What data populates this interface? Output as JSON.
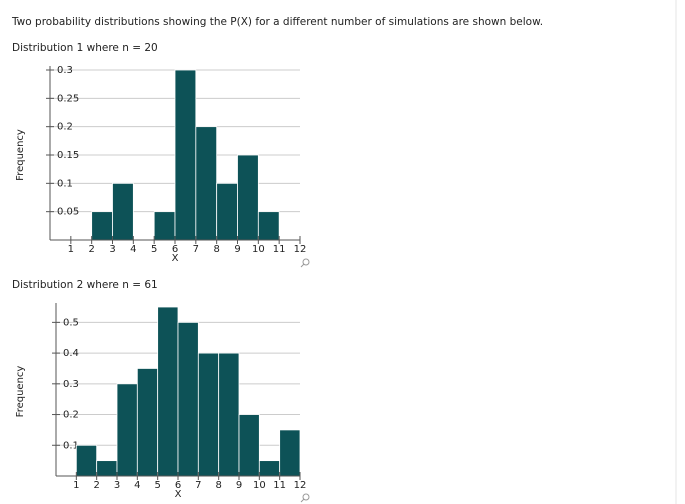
{
  "intro": "Two probability distributions showing the P(X) for a different number of simulations are shown below.",
  "chart_data": [
    {
      "type": "histogram",
      "title": "Distribution 1 where n = 20",
      "x_label": "X",
      "y_label": "Frequency",
      "bins": [
        1,
        2,
        3,
        4,
        5,
        6,
        7,
        8,
        9,
        10,
        11,
        12
      ],
      "values": [
        0,
        0.05,
        0.1,
        0,
        0.05,
        0.3,
        0.2,
        0.1,
        0.15,
        0.05,
        0
      ],
      "color": "#0d5257",
      "xlim": [
        0,
        12
      ],
      "ylim": [
        0,
        0.3
      ],
      "xticks": [
        1,
        2,
        3,
        4,
        5,
        6,
        7,
        8,
        9,
        10,
        11,
        12
      ],
      "yticks": [
        0.05,
        0.1,
        0.15,
        0.2,
        0.25,
        0.3
      ],
      "grid": true
    },
    {
      "type": "histogram",
      "title": "Distribution 2 where n = 61",
      "x_label": "X",
      "y_label": "Frequency",
      "bins": [
        1,
        2,
        3,
        4,
        5,
        6,
        7,
        8,
        9,
        10,
        11,
        12
      ],
      "values": [
        0.1,
        0.05,
        0.3,
        0.35,
        0.55,
        0.5,
        0.4,
        0.4,
        0.2,
        0.05,
        0.15
      ],
      "color": "#0d5257",
      "xlim": [
        0,
        12
      ],
      "ylim": [
        0,
        0.55
      ],
      "xticks": [
        1,
        2,
        3,
        4,
        5,
        6,
        7,
        8,
        9,
        10,
        11,
        12
      ],
      "yticks": [
        0.1,
        0.2,
        0.3,
        0.4,
        0.5
      ],
      "grid": true
    }
  ]
}
